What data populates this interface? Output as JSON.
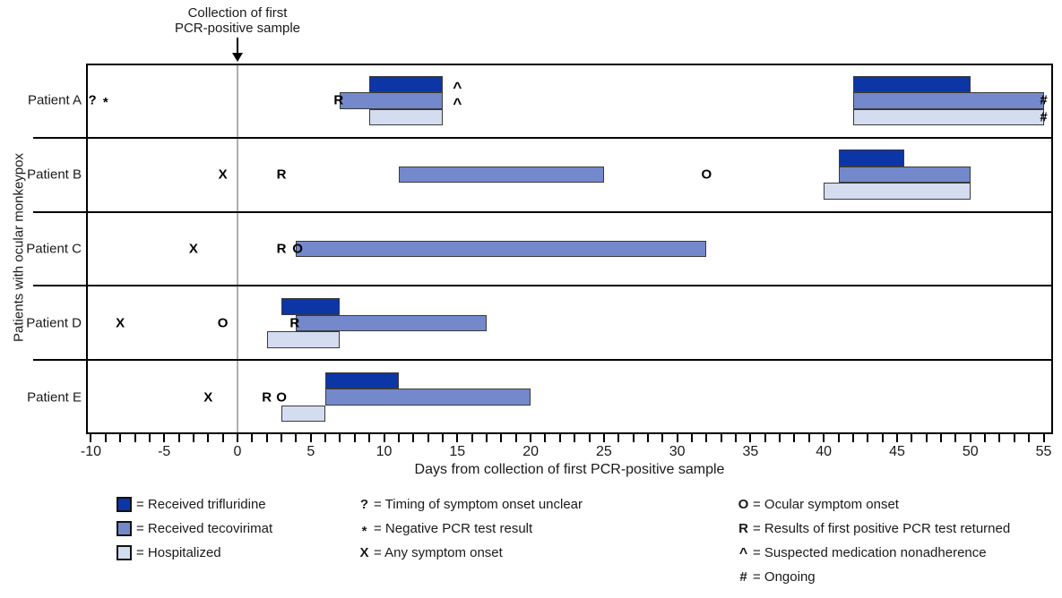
{
  "annotation": {
    "text": "Collection of first\nPCR-positive sample"
  },
  "ylabel": "Patients with ocular monkeypox",
  "xlabel": "Days from collection of first PCR-positive sample",
  "colors": {
    "trifluridine": "#0C35A6",
    "tecovirimat": "#7389CC",
    "hospitalized": "#D4DCF0",
    "bar_border": "#3A3A3A",
    "zero_line": "#AFAFAF"
  },
  "chart_data": {
    "type": "gantt-timeline",
    "xlabel": "Days from collection of first PCR-positive sample",
    "ylabel": "Patients with ocular monkeypox",
    "x_range_days": [
      -10,
      55
    ],
    "x_tick_every": 1,
    "x_tick_labels": [
      -10,
      -5,
      0,
      5,
      10,
      15,
      20,
      25,
      30,
      35,
      40,
      45,
      50,
      55
    ],
    "reference_line_day": 0,
    "series_types": [
      "trifluridine",
      "tecovirimat",
      "hospitalized"
    ],
    "patients": [
      {
        "label": "Patient A",
        "bars": [
          {
            "type": "trifluridine",
            "start": 9,
            "end": 14
          },
          {
            "type": "tecovirimat",
            "start": 7,
            "end": 14
          },
          {
            "type": "hospitalized",
            "start": 9,
            "end": 14
          },
          {
            "type": "trifluridine",
            "start": 42,
            "end": 50
          },
          {
            "type": "tecovirimat",
            "start": 42,
            "end": 55
          },
          {
            "type": "hospitalized",
            "start": 42,
            "end": 55
          }
        ],
        "symbols": [
          {
            "glyph": "?",
            "day": -9.9,
            "level": "mid"
          },
          {
            "glyph": "*",
            "day": -9,
            "level": "mid"
          },
          {
            "glyph": "R",
            "day": 6.9,
            "level": "tec"
          },
          {
            "glyph": "^",
            "day": 15,
            "level": "tri"
          },
          {
            "glyph": "^",
            "day": 15,
            "level": "tec"
          },
          {
            "glyph": "#",
            "day": 55,
            "level": "tec"
          },
          {
            "glyph": "#",
            "day": 55,
            "level": "hosp"
          }
        ]
      },
      {
        "label": "Patient B",
        "bars": [
          {
            "type": "tecovirimat",
            "start": 11,
            "end": 25
          },
          {
            "type": "trifluridine",
            "start": 41,
            "end": 45.5
          },
          {
            "type": "tecovirimat",
            "start": 41,
            "end": 50
          },
          {
            "type": "hospitalized",
            "start": 40,
            "end": 50
          }
        ],
        "symbols": [
          {
            "glyph": "X",
            "day": -1,
            "level": "mid"
          },
          {
            "glyph": "R",
            "day": 3,
            "level": "mid"
          },
          {
            "glyph": "O",
            "day": 32,
            "level": "mid"
          }
        ]
      },
      {
        "label": "Patient C",
        "bars": [
          {
            "type": "tecovirimat",
            "start": 4,
            "end": 32
          }
        ],
        "symbols": [
          {
            "glyph": "X",
            "day": -3,
            "level": "mid"
          },
          {
            "glyph": "R",
            "day": 3,
            "level": "mid"
          },
          {
            "glyph": "O",
            "day": 4.1,
            "level": "mid"
          }
        ]
      },
      {
        "label": "Patient D",
        "bars": [
          {
            "type": "trifluridine",
            "start": 3,
            "end": 7
          },
          {
            "type": "tecovirimat",
            "start": 4,
            "end": 17
          },
          {
            "type": "hospitalized",
            "start": 2,
            "end": 7
          }
        ],
        "symbols": [
          {
            "glyph": "X",
            "day": -8,
            "level": "mid"
          },
          {
            "glyph": "O",
            "day": -1,
            "level": "mid"
          },
          {
            "glyph": "R",
            "day": 3.9,
            "level": "tec"
          }
        ]
      },
      {
        "label": "Patient E",
        "bars": [
          {
            "type": "trifluridine",
            "start": 6,
            "end": 11
          },
          {
            "type": "tecovirimat",
            "start": 6,
            "end": 20
          },
          {
            "type": "hospitalized",
            "start": 3,
            "end": 6
          }
        ],
        "symbols": [
          {
            "glyph": "X",
            "day": -2,
            "level": "mid"
          },
          {
            "glyph": "R",
            "day": 2,
            "level": "mid"
          },
          {
            "glyph": "O",
            "day": 3,
            "level": "mid"
          }
        ]
      }
    ]
  },
  "legend": {
    "columns": [
      {
        "items": [
          {
            "swatch": "trifluridine",
            "label": "= Received trifluridine"
          },
          {
            "swatch": "tecovirimat",
            "label": "= Received tecovirimat"
          },
          {
            "swatch": "hospitalized",
            "label": "= Hospitalized"
          }
        ]
      },
      {
        "items": [
          {
            "glyph": "?",
            "label": "= Timing of symptom onset unclear"
          },
          {
            "glyph": "*",
            "label": "= Negative PCR test result"
          },
          {
            "glyph": "X",
            "label": "= Any symptom onset"
          }
        ]
      },
      {
        "items": [
          {
            "glyph": "O",
            "label": "= Ocular symptom onset"
          },
          {
            "glyph": "R",
            "label": "= Results of first positive PCR test returned"
          },
          {
            "glyph": "^",
            "label": "= Suspected medication nonadherence"
          },
          {
            "glyph": "#",
            "label": "= Ongoing"
          }
        ]
      }
    ]
  }
}
